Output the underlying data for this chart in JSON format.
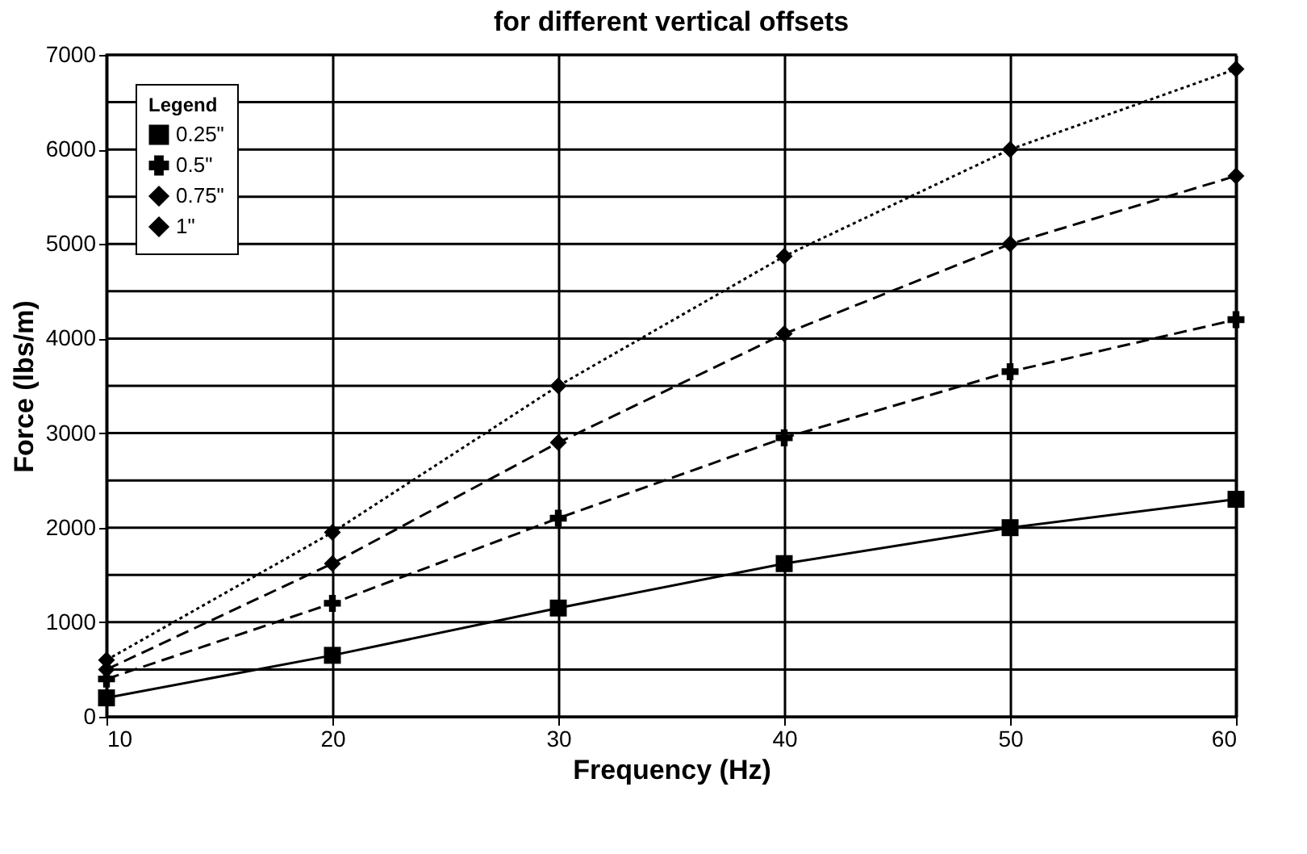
{
  "chart_data": {
    "type": "line",
    "title": "for different vertical offsets",
    "xlabel": "Frequency (Hz)",
    "ylabel": "Force (lbs/m)",
    "legend_title": "Legend",
    "legend": "top left",
    "grid": true,
    "x": [
      10,
      20,
      30,
      40,
      50,
      60
    ],
    "series": [
      {
        "name": "0.25\"",
        "color": "#000000",
        "marker": "square",
        "line_style": "solid",
        "values": [
          200,
          650,
          1150,
          1620,
          2000,
          2300
        ]
      },
      {
        "name": "0.5\"",
        "color": "#000000",
        "marker": "cross",
        "line_style": "dashed",
        "values": [
          400,
          1200,
          2100,
          2950,
          3650,
          4200
        ]
      },
      {
        "name": "0.75\"",
        "color": "#000000",
        "marker": "diamond",
        "line_style": "dashed",
        "values": [
          500,
          1620,
          2900,
          4050,
          5000,
          5720
        ]
      },
      {
        "name": "1\"",
        "color": "#000000",
        "marker": "diamond",
        "line_style": "dotted",
        "values": [
          600,
          1950,
          3500,
          4870,
          6000,
          6850
        ]
      }
    ],
    "xlim": [
      10,
      60
    ],
    "xticks": [
      10,
      20,
      30,
      40,
      50,
      60
    ],
    "ylim": [
      0,
      7000
    ],
    "yticks": [
      0,
      {
        "value": 500,
        "label": null
      },
      1000,
      {
        "value": 1500,
        "label": null
      },
      2000,
      {
        "value": 2500,
        "label": null
      },
      3000,
      {
        "value": 3500,
        "label": null
      },
      4000,
      {
        "value": 4500,
        "label": null
      },
      5000,
      {
        "value": 5500,
        "label": null
      },
      6000,
      {
        "value": 6500,
        "label": null
      },
      7000
    ]
  }
}
